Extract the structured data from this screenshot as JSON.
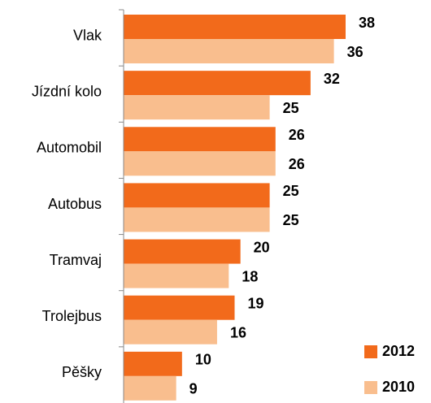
{
  "chart_data": {
    "type": "bar",
    "orientation": "horizontal",
    "categories": [
      "Vlak",
      "Jízdní kolo",
      "Automobil",
      "Autobus",
      "Tramvaj",
      "Trolejbus",
      "Pěšky"
    ],
    "series": [
      {
        "name": "2012",
        "color": "#f26a1b",
        "values": [
          38,
          32,
          26,
          25,
          20,
          19,
          10
        ]
      },
      {
        "name": "2010",
        "color": "#f9be8e",
        "values": [
          36,
          25,
          26,
          25,
          18,
          16,
          9
        ]
      }
    ],
    "legend": "bottom-right"
  }
}
